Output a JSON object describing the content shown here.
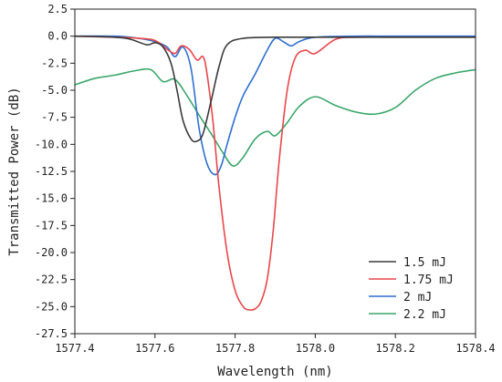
{
  "chart_data": {
    "type": "line",
    "title": "",
    "xlabel": "Wavelength (nm)",
    "ylabel": "Transmitted Power (dB)",
    "xlim": [
      1577.4,
      1578.4
    ],
    "ylim": [
      -27.5,
      2.5
    ],
    "xticks": [
      1577.4,
      1577.6,
      1577.8,
      1578.0,
      1578.2,
      1578.4
    ],
    "xtick_labels": [
      "1577.4",
      "1577.6",
      "1577.8",
      "1578.0",
      "1578.2",
      "1578.4"
    ],
    "yticks": [
      2.5,
      0.0,
      -2.5,
      -5.0,
      -7.5,
      -10.0,
      -12.5,
      -15.0,
      -17.5,
      -20.0,
      -22.5,
      -25.0,
      -27.5
    ],
    "ytick_labels": [
      "2.5",
      "0.0",
      "-2.5",
      "-5.0",
      "-7.5",
      "-10.0",
      "-12.5",
      "-15.0",
      "-17.5",
      "-20.0",
      "-22.5",
      "-25.0",
      "-27.5"
    ],
    "grid": false,
    "legend_position": "bottom-right",
    "series": [
      {
        "name": "1.5 mJ",
        "color": "#3a3a3a",
        "x": [
          1577.4,
          1577.5,
          1577.54,
          1577.58,
          1577.6,
          1577.62,
          1577.64,
          1577.655,
          1577.67,
          1577.69,
          1577.705,
          1577.72,
          1577.74,
          1577.76,
          1577.78,
          1577.82,
          1577.9,
          1578.0,
          1578.1,
          1578.2,
          1578.3,
          1578.4
        ],
        "y": [
          0.0,
          -0.1,
          -0.3,
          -0.8,
          -0.6,
          -1.0,
          -2.5,
          -5.0,
          -7.8,
          -9.5,
          -9.7,
          -9.0,
          -6.0,
          -2.8,
          -0.8,
          -0.2,
          -0.1,
          -0.1,
          -0.1,
          -0.1,
          -0.1,
          -0.1
        ]
      },
      {
        "name": "1.75 mJ",
        "color": "#e8474a",
        "x": [
          1577.4,
          1577.5,
          1577.56,
          1577.6,
          1577.63,
          1577.65,
          1577.665,
          1577.685,
          1577.705,
          1577.72,
          1577.73,
          1577.745,
          1577.76,
          1577.78,
          1577.8,
          1577.82,
          1577.835,
          1577.85,
          1577.865,
          1577.88,
          1577.895,
          1577.91,
          1577.93,
          1577.95,
          1577.975,
          1578.0,
          1578.05,
          1578.1,
          1578.2,
          1578.4
        ],
        "y": [
          0.0,
          -0.1,
          -0.2,
          -0.4,
          -1.2,
          -1.6,
          -0.9,
          -1.2,
          -2.2,
          -1.9,
          -3.5,
          -8.0,
          -14.0,
          -20.0,
          -23.5,
          -25.0,
          -25.3,
          -25.2,
          -24.5,
          -22.5,
          -18.0,
          -11.5,
          -5.0,
          -2.0,
          -1.3,
          -1.6,
          -0.3,
          -0.1,
          -0.1,
          -0.1
        ]
      },
      {
        "name": "2 mJ",
        "color": "#2f6fd1",
        "x": [
          1577.4,
          1577.5,
          1577.56,
          1577.6,
          1577.63,
          1577.65,
          1577.67,
          1577.69,
          1577.71,
          1577.73,
          1577.75,
          1577.765,
          1577.78,
          1577.8,
          1577.82,
          1577.85,
          1577.88,
          1577.9,
          1577.92,
          1577.94,
          1577.96,
          1578.0,
          1578.1,
          1578.2,
          1578.4
        ],
        "y": [
          0.0,
          0.0,
          -0.2,
          -0.5,
          -1.0,
          -1.9,
          -1.0,
          -3.0,
          -8.5,
          -11.8,
          -12.8,
          -12.0,
          -10.0,
          -7.5,
          -5.5,
          -3.5,
          -1.3,
          -0.2,
          -0.5,
          -0.9,
          -0.5,
          -0.1,
          0.0,
          0.0,
          0.0
        ]
      },
      {
        "name": "2.2 mJ",
        "color": "#3aa66a",
        "x": [
          1577.4,
          1577.45,
          1577.5,
          1577.55,
          1577.59,
          1577.62,
          1577.65,
          1577.68,
          1577.71,
          1577.74,
          1577.77,
          1577.795,
          1577.82,
          1577.85,
          1577.88,
          1577.9,
          1577.93,
          1577.96,
          1578.0,
          1578.05,
          1578.1,
          1578.15,
          1578.2,
          1578.25,
          1578.3,
          1578.35,
          1578.4
        ],
        "y": [
          -4.5,
          -3.9,
          -3.6,
          -3.2,
          -3.1,
          -4.2,
          -4.0,
          -5.5,
          -7.3,
          -9.0,
          -10.8,
          -12.0,
          -11.2,
          -9.5,
          -8.8,
          -9.2,
          -8.0,
          -6.5,
          -5.6,
          -6.4,
          -7.0,
          -7.2,
          -6.6,
          -5.0,
          -3.9,
          -3.4,
          -3.1
        ]
      }
    ]
  }
}
